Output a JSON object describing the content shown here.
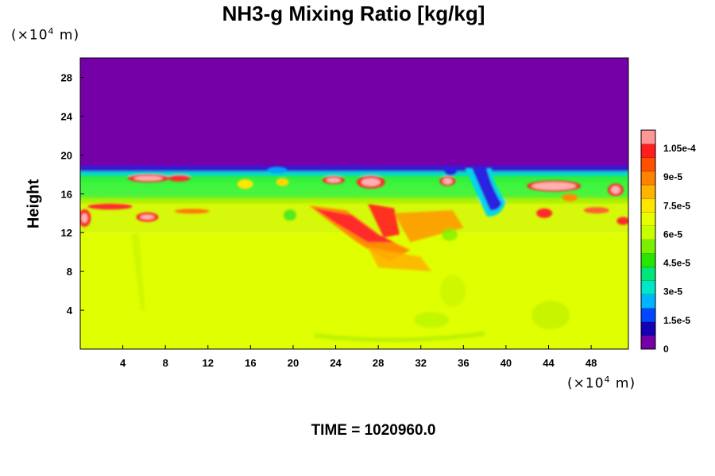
{
  "chart_data": {
    "type": "heatmap",
    "title": "NH3-g Mixing Ratio [kg/kg]",
    "xlabel": "",
    "ylabel": "Height",
    "x_unit": {
      "prefix": "(×10",
      "exp": "4",
      "suffix": " m)"
    },
    "y_unit": {
      "prefix": "(×10",
      "exp": "4",
      "suffix": " m)"
    },
    "xlim": [
      0,
      51.5
    ],
    "ylim": [
      0,
      30
    ],
    "xticks": [
      "4",
      "8",
      "12",
      "16",
      "20",
      "24",
      "28",
      "32",
      "36",
      "40",
      "44",
      "48"
    ],
    "yticks": [
      "4",
      "8",
      "12",
      "16",
      "20",
      "24",
      "28"
    ],
    "field_summary": {
      "upper_region": {
        "y_range": [
          18.5,
          30
        ],
        "value": 0
      },
      "cloud_layer": {
        "y_range": [
          15.3,
          18.5
        ],
        "value_range": [
          4.5e-05,
          0.000105
        ]
      },
      "transition_layer": {
        "y_range": [
          12.0,
          15.3
        ],
        "value_range": [
          7.5e-05,
          0.000105
        ]
      },
      "lower_region": {
        "y_range": [
          0,
          12.0
        ],
        "approx_value": 7.8e-05
      }
    },
    "colorbar": {
      "labels": [
        "1.05e-4",
        "9e-5",
        "7.5e-5",
        "6e-5",
        "4.5e-5",
        "3e-5",
        "1.5e-5",
        "0"
      ],
      "colors": [
        "#7600a8",
        "#1400b0",
        "#0048ff",
        "#00b4ff",
        "#00e6c8",
        "#00e678",
        "#28e600",
        "#78f000",
        "#c8ff00",
        "#e6ff00",
        "#ffe600",
        "#ffb400",
        "#ff8200",
        "#ff5000",
        "#ff1e1e",
        "#ff9696"
      ]
    },
    "colors": {
      "purple": "#7600a8",
      "lower_fill": "#e0ff00",
      "cloud_green": "#36f53a",
      "red": "#ff2a2a",
      "pink": "#ffb0b0",
      "orange": "#ff9a00",
      "blue": "#2a20e0",
      "cyan": "#00d8e8"
    }
  },
  "footer": {
    "time_text": "TIME = 1020960.0"
  }
}
